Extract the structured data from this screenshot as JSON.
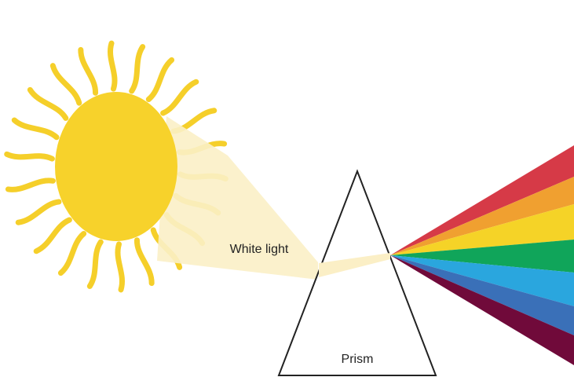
{
  "labels": {
    "white_light": "White light",
    "prism": "Prism"
  }
}
